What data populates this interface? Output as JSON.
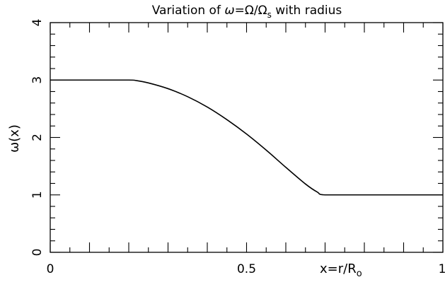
{
  "chart_data": {
    "type": "line",
    "title": {
      "prefix": "Variation of ",
      "omega": "ω",
      "equals": "=",
      "Omega": "Ω",
      "slash": "/",
      "Omega2": "Ω",
      "sub": "s",
      "suffix": " with radius"
    },
    "ylabel": "ω(x)",
    "xlabel": {
      "main": "x=r/R",
      "sub": "o"
    },
    "xlim": [
      0,
      1
    ],
    "ylim": [
      0,
      4
    ],
    "x_tick_labels": [
      "0",
      "0.5",
      "1"
    ],
    "y_tick_labels": [
      "0",
      "1",
      "2",
      "3",
      "4"
    ],
    "grid": false,
    "series": [
      {
        "x": [
          0,
          0.1,
          0.2,
          0.22,
          0.25,
          0.3,
          0.35,
          0.4,
          0.45,
          0.5,
          0.55,
          0.6,
          0.65,
          0.68,
          0.7,
          0.8,
          0.9,
          1.0
        ],
        "y": [
          3,
          3,
          3,
          2.99,
          2.95,
          2.85,
          2.71,
          2.53,
          2.31,
          2.06,
          1.78,
          1.48,
          1.19,
          1.05,
          1,
          1,
          1,
          1
        ]
      }
    ],
    "color": "#000000"
  }
}
